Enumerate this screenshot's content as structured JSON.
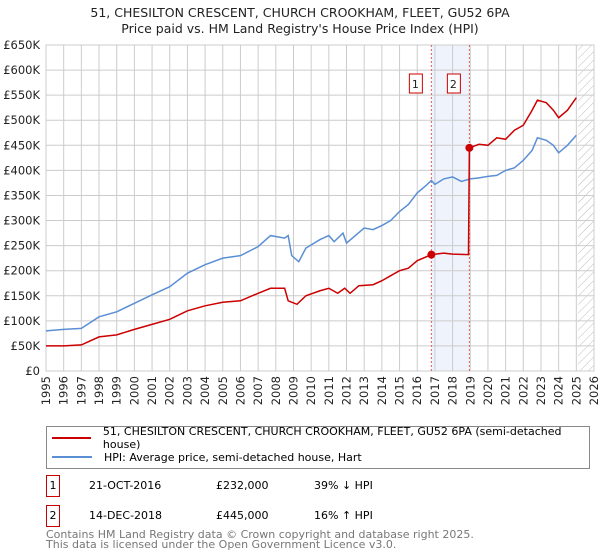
{
  "chart_data": {
    "type": "line",
    "title": "51, CHESILTON CRESCENT, CHURCH CROOKHAM, FLEET, GU52 6PA",
    "subtitle": "Price paid vs. HM Land Registry's House Price Index (HPI)",
    "xlim": [
      1995,
      2026
    ],
    "ylim": [
      0,
      650000
    ],
    "x_ticks": [
      "1995",
      "1996",
      "1997",
      "1998",
      "1999",
      "2000",
      "2001",
      "2002",
      "2003",
      "2004",
      "2005",
      "2006",
      "2007",
      "2008",
      "2009",
      "2010",
      "2011",
      "2012",
      "2013",
      "2014",
      "2015",
      "2016",
      "2017",
      "2018",
      "2019",
      "2020",
      "2021",
      "2022",
      "2023",
      "2024",
      "2025",
      "2026"
    ],
    "y_ticks": [
      {
        "v": 0,
        "l": "£0"
      },
      {
        "v": 50000,
        "l": "£50K"
      },
      {
        "v": 100000,
        "l": "£100K"
      },
      {
        "v": 150000,
        "l": "£150K"
      },
      {
        "v": 200000,
        "l": "£200K"
      },
      {
        "v": 250000,
        "l": "£250K"
      },
      {
        "v": 300000,
        "l": "£300K"
      },
      {
        "v": 350000,
        "l": "£350K"
      },
      {
        "v": 400000,
        "l": "£400K"
      },
      {
        "v": 450000,
        "l": "£450K"
      },
      {
        "v": 500000,
        "l": "£500K"
      },
      {
        "v": 550000,
        "l": "£550K"
      },
      {
        "v": 600000,
        "l": "£600K"
      },
      {
        "v": 650000,
        "l": "£650K"
      }
    ],
    "grid": true,
    "shaded_range": [
      2016.8,
      2018.95
    ],
    "hatched_from": 2025.1,
    "series": [
      {
        "name": "51, CHESILTON CRESCENT, CHURCH CROOKHAM, FLEET, GU52 6PA (semi-detached house)",
        "color": "#cc0000",
        "x": [
          1995,
          1996,
          1997,
          1998,
          1999,
          2000,
          2001,
          2002,
          2003,
          2004,
          2005,
          2006,
          2007,
          2007.7,
          2008.5,
          2008.7,
          2009.2,
          2009.7,
          2010.5,
          2011,
          2011.5,
          2011.9,
          2012.2,
          2012.7,
          2013.5,
          2014,
          2014.5,
          2015,
          2015.5,
          2016,
          2016.8,
          2017.5,
          2018,
          2018.9,
          2018.95,
          2019.5,
          2020,
          2020.5,
          2021,
          2021.5,
          2022,
          2022.5,
          2022.8,
          2023.3,
          2023.7,
          2024,
          2024.5,
          2025
        ],
        "y": [
          50000,
          50000,
          52000,
          68000,
          72000,
          83000,
          93000,
          103000,
          120000,
          130000,
          137000,
          140000,
          155000,
          165000,
          165000,
          140000,
          133000,
          150000,
          160000,
          165000,
          155000,
          165000,
          155000,
          170000,
          172000,
          180000,
          190000,
          200000,
          205000,
          220000,
          232000,
          235000,
          233000,
          232000,
          445000,
          452000,
          450000,
          465000,
          462000,
          480000,
          490000,
          520000,
          540000,
          535000,
          520000,
          505000,
          520000,
          545000
        ]
      },
      {
        "name": "HPI: Average price, semi-detached house, Hart",
        "color": "#5b8fd4",
        "x": [
          1995,
          1996,
          1997,
          1998,
          1999,
          2000,
          2001,
          2002,
          2003,
          2004,
          2005,
          2006,
          2007,
          2007.7,
          2008.5,
          2008.7,
          2008.9,
          2009.3,
          2009.7,
          2010.5,
          2011,
          2011.3,
          2011.8,
          2012,
          2012.5,
          2013,
          2013.5,
          2014,
          2014.5,
          2015,
          2015.5,
          2016,
          2016.5,
          2016.8,
          2017,
          2017.5,
          2018,
          2018.5,
          2019,
          2019.5,
          2020,
          2020.5,
          2021,
          2021.5,
          2022,
          2022.5,
          2022.8,
          2023.3,
          2023.7,
          2024,
          2024.5,
          2025
        ],
        "y": [
          80000,
          83000,
          85000,
          108000,
          118000,
          135000,
          152000,
          168000,
          195000,
          212000,
          225000,
          230000,
          248000,
          270000,
          265000,
          270000,
          230000,
          218000,
          245000,
          262000,
          270000,
          258000,
          275000,
          255000,
          270000,
          285000,
          282000,
          290000,
          300000,
          318000,
          332000,
          355000,
          370000,
          380000,
          372000,
          383000,
          387000,
          378000,
          383000,
          385000,
          388000,
          390000,
          400000,
          405000,
          420000,
          440000,
          465000,
          460000,
          450000,
          435000,
          450000,
          470000
        ]
      }
    ],
    "annotations": [
      {
        "label": "1",
        "x": 2016.8,
        "y": 232000
      },
      {
        "label": "2",
        "x": 2018.95,
        "y": 445000
      }
    ]
  },
  "transactions": [
    {
      "num": "1",
      "date": "21-OCT-2016",
      "price": "£232,000",
      "hpi": "39% ↓ HPI"
    },
    {
      "num": "2",
      "date": "14-DEC-2018",
      "price": "£445,000",
      "hpi": "16% ↑ HPI"
    }
  ],
  "footer": {
    "line1": "Contains HM Land Registry data © Crown copyright and database right 2025.",
    "line2": "This data is licensed under the Open Government Licence v3.0."
  }
}
